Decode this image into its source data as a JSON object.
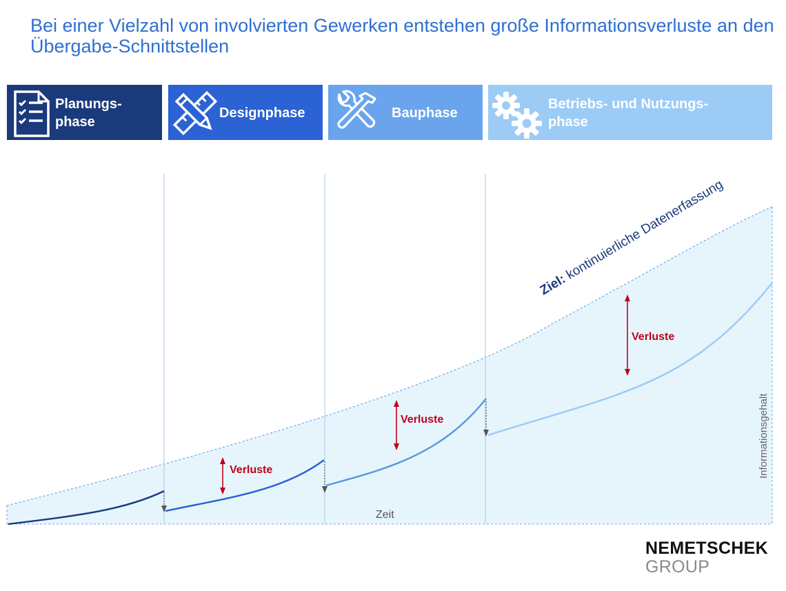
{
  "title": "Bei einer Vielzahl von involvierten Gewerken entstehen große Informationsverluste an den Übergabe-Schnittstellen",
  "phases": [
    {
      "label_line1": "Planungs-",
      "label_line2": "phase",
      "icon": "checklist-icon",
      "color": "#1a3a7c"
    },
    {
      "label_line1": "Designphase",
      "label_line2": "",
      "icon": "pencil-ruler-icon",
      "color": "#2b62d4"
    },
    {
      "label_line1": "Bauphase",
      "label_line2": "",
      "icon": "wrench-hammer-icon",
      "color": "#6aa4ec"
    },
    {
      "label_line1": "Betriebs- und Nutzungs-",
      "label_line2": "phase",
      "icon": "gears-icon",
      "color": "#9ccbf5"
    }
  ],
  "diagram": {
    "goal_label_bold": "Ziel:",
    "goal_label_rest": " kontinuierliche Datenerfassung",
    "loss_label": "Verluste",
    "x_axis_label": "Zeit",
    "y_axis_label": "Informationsgehalt",
    "colors": {
      "area": "#e6f5fc",
      "loss_arrow": "#c0001a",
      "curve_phase1": "#1a3a7c",
      "curve_phase2": "#2b62d4",
      "curve_phase3": "#5a98e0",
      "curve_phase4": "#9ccbf5",
      "goal_text": "#1a3a7c"
    }
  },
  "logo": {
    "line1": "NEMETSCHEK",
    "line2": "GROUP"
  }
}
